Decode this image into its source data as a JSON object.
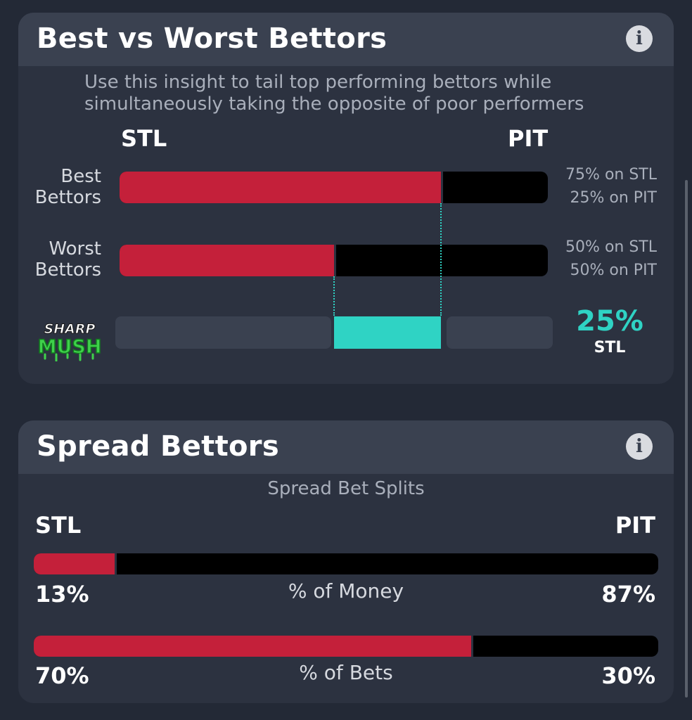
{
  "best_worst": {
    "title": "Best vs Worst Bettors",
    "subtitle": "Use this insight to tail top performing bettors while simultaneously taking the opposite of poor performers",
    "team_left": "STL",
    "team_right": "PIT",
    "rows": [
      {
        "label_line1": "Best",
        "label_line2": "Bettors",
        "stl_pct": 75,
        "pit_pct": 25,
        "stl_text": "75% on STL",
        "pit_text": "25% on PIT"
      },
      {
        "label_line1": "Worst",
        "label_line2": "Bettors",
        "stl_pct": 50,
        "pit_pct": 50,
        "stl_text": "50% on STL",
        "pit_text": "50% on PIT"
      }
    ],
    "difference": {
      "value": "25%",
      "team": "STL",
      "fraction_start": 0.5,
      "fraction_end": 0.75
    },
    "logo": {
      "line1": "SHARP",
      "line2": "MUSH"
    }
  },
  "spread": {
    "title": "Spread Bettors",
    "subtitle": "Spread Bet Splits",
    "team_left": "STL",
    "team_right": "PIT",
    "rows": [
      {
        "label": "% of Money",
        "stl_pct": 13,
        "pit_pct": 87,
        "stl_text": "13%",
        "pit_text": "87%"
      },
      {
        "label": "% of Bets",
        "stl_pct": 70,
        "pit_pct": 30,
        "stl_text": "70%",
        "pit_text": "30%"
      }
    ]
  },
  "colors": {
    "stl": "#c4203a",
    "pit": "#000000",
    "accent": "#2fd3c4",
    "card": "#2c3240",
    "header": "#3a4150"
  },
  "icons": {
    "info": "info-icon",
    "logo": "sharp-mush-logo"
  }
}
